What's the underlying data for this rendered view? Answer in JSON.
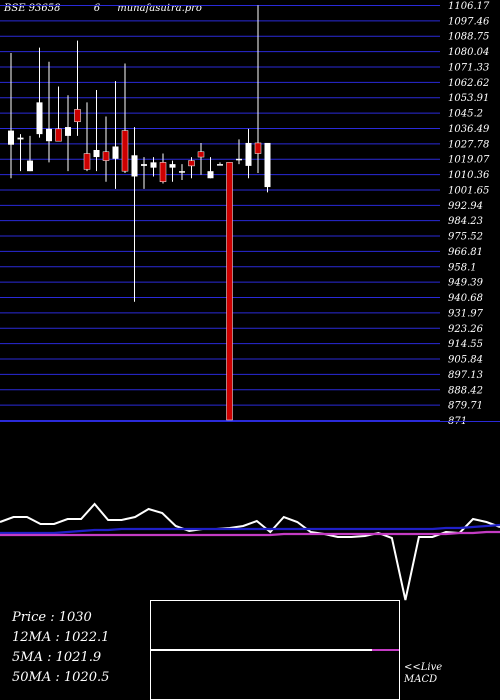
{
  "header": {
    "symbol": "BSE 93658",
    "period": "6",
    "site": "munafasutra.pro"
  },
  "chart_data": {
    "type": "candlestick",
    "price_axis": {
      "ticks": [
        1097.46,
        1088.75,
        1080.04,
        1071.33,
        1062.62,
        1053.91,
        1045.2,
        1036.49,
        1027.78,
        1019.07,
        1010.36,
        1001.65,
        992.94,
        984.23,
        975.52,
        966.81,
        958.1,
        949.39,
        940.68,
        931.97,
        923.26,
        914.55,
        905.84,
        897.13,
        888.42,
        879.71,
        871
      ],
      "top_tick_partial": "1106.17",
      "ylim": [
        871,
        1106.17
      ]
    },
    "candles": [
      {
        "o": 1027,
        "h": 1079,
        "l": 1008,
        "c": 1035,
        "col": "white"
      },
      {
        "o": 1031,
        "h": 1033,
        "l": 1012,
        "c": 1030,
        "col": "white"
      },
      {
        "o": 1012,
        "h": 1032,
        "l": 1012,
        "c": 1018,
        "col": "white"
      },
      {
        "o": 1033,
        "h": 1082,
        "l": 1031,
        "c": 1051,
        "col": "white"
      },
      {
        "o": 1029,
        "h": 1074,
        "l": 1017,
        "c": 1036,
        "col": "white"
      },
      {
        "o": 1036,
        "h": 1060,
        "l": 1030,
        "c": 1029,
        "col": "red"
      },
      {
        "o": 1032,
        "h": 1055,
        "l": 1012,
        "c": 1037,
        "col": "white"
      },
      {
        "o": 1040,
        "h": 1086,
        "l": 1032,
        "c": 1047,
        "col": "red"
      },
      {
        "o": 1022,
        "h": 1051,
        "l": 1012,
        "c": 1013,
        "col": "red"
      },
      {
        "o": 1020,
        "h": 1058,
        "l": 1012,
        "c": 1024,
        "col": "white"
      },
      {
        "o": 1023,
        "h": 1043,
        "l": 1006,
        "c": 1018,
        "col": "red"
      },
      {
        "o": 1019,
        "h": 1063,
        "l": 1002,
        "c": 1026,
        "col": "white"
      },
      {
        "o": 1035,
        "h": 1073,
        "l": 1011,
        "c": 1012,
        "col": "red"
      },
      {
        "o": 1021,
        "h": 1037,
        "l": 938,
        "c": 1009,
        "col": "white"
      },
      {
        "o": 1015,
        "h": 1020,
        "l": 1002,
        "c": 1016,
        "col": "white"
      },
      {
        "o": 1017,
        "h": 1020,
        "l": 1009,
        "c": 1014,
        "col": "white"
      },
      {
        "o": 1006,
        "h": 1022,
        "l": 1005,
        "c": 1017,
        "col": "red"
      },
      {
        "o": 1014,
        "h": 1018,
        "l": 1006,
        "c": 1016,
        "col": "white"
      },
      {
        "o": 1012,
        "h": 1016,
        "l": 1007,
        "c": 1012,
        "col": "white"
      },
      {
        "o": 1015,
        "h": 1020,
        "l": 1008,
        "c": 1018,
        "col": "red"
      },
      {
        "o": 1020,
        "h": 1028,
        "l": 1010,
        "c": 1023,
        "col": "red"
      },
      {
        "o": 1008,
        "h": 1020,
        "l": 1008,
        "c": 1012,
        "col": "white"
      },
      {
        "o": 1016,
        "h": 1017,
        "l": 1016,
        "c": 1016,
        "col": "white"
      },
      {
        "o": 1017,
        "h": 1017,
        "l": 871,
        "c": 871,
        "col": "red"
      },
      {
        "o": 1019,
        "h": 1030,
        "l": 1016,
        "c": 1019,
        "col": "white"
      },
      {
        "o": 1015,
        "h": 1036,
        "l": 1008,
        "c": 1028,
        "col": "white"
      },
      {
        "o": 1028,
        "h": 1106,
        "l": 1011,
        "c": 1022,
        "col": "red"
      },
      {
        "o": 1028,
        "h": 1028,
        "l": 1000,
        "c": 1003,
        "col": "white"
      }
    ],
    "indicator_lines": [
      {
        "color": "#ffffff",
        "values": [
          522,
          517,
          517,
          524,
          524,
          519,
          519,
          504,
          520,
          520,
          517,
          509,
          513,
          526,
          531,
          529,
          529,
          528,
          526,
          521,
          532,
          517,
          522,
          532,
          534,
          537,
          537,
          536,
          533,
          538,
          600,
          537,
          537,
          532,
          533,
          519,
          522,
          527
        ]
      },
      {
        "color": "#2020c8",
        "values": [
          533,
          533,
          533,
          533,
          533,
          532,
          531,
          530,
          530,
          529,
          529,
          529,
          529,
          529,
          529,
          529,
          529,
          529,
          529,
          529,
          529,
          529,
          529,
          529,
          529,
          529,
          529,
          529,
          529,
          529,
          529,
          529,
          529,
          528,
          528,
          527,
          526,
          525
        ]
      },
      {
        "color": "#c43cc4",
        "values": [
          535,
          535,
          535,
          535,
          535,
          535,
          535,
          535,
          535,
          535,
          535,
          535,
          535,
          535,
          535,
          535,
          535,
          535,
          535,
          535,
          535,
          534,
          534,
          534,
          534,
          534,
          534,
          534,
          534,
          534,
          534,
          534,
          534,
          534,
          533,
          533,
          532,
          532
        ]
      }
    ],
    "macd_levels": {
      "base": 0.5
    }
  },
  "stats": {
    "price": "Price   : 1030",
    "ma12": "12MA : 1022.1",
    "ma5": "5MA : 1021.9",
    "ma50": "50MA : 1020.5"
  },
  "macd_label": {
    "line1": "<<Live",
    "line2": "MACD"
  }
}
